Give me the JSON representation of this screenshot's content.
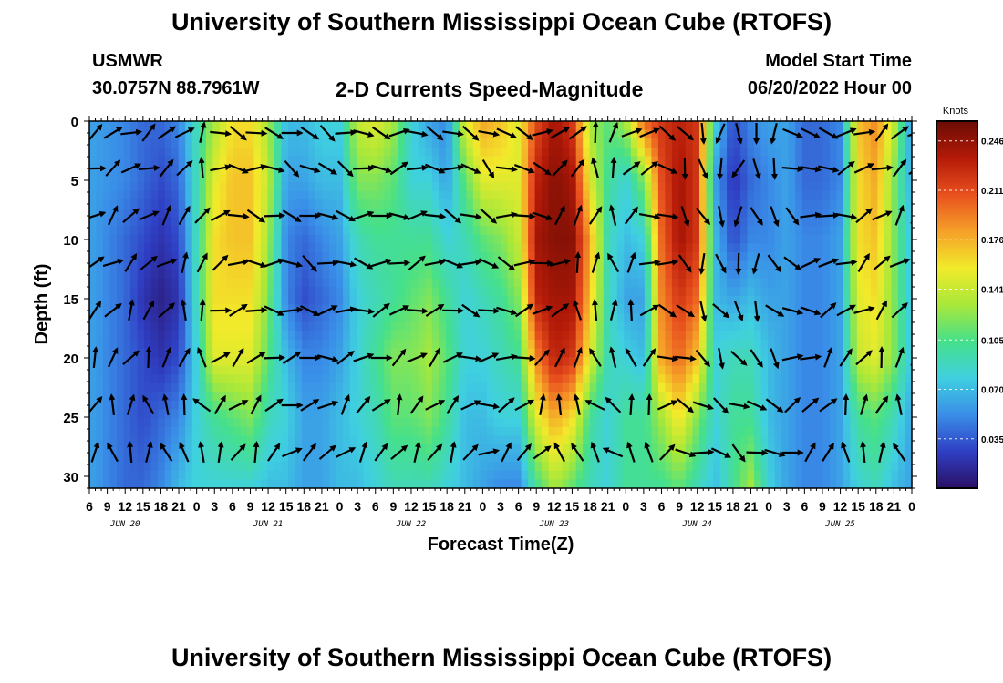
{
  "header": {
    "title": "University of Southern Mississippi Ocean Cube (RTOFS)",
    "station": "USMWR",
    "coords": "30.0757N  88.7961W",
    "subtitle": "2-D Currents Speed-Magnitude",
    "model_label": "Model Start Time",
    "model_time": "06/20/2022 Hour 00"
  },
  "footer": {
    "title": "University of Southern Mississippi Ocean Cube (RTOFS)"
  },
  "colors": {
    "scale": [
      "#2b1065",
      "#2f3fc4",
      "#3a8ee8",
      "#3fd0e0",
      "#46e08a",
      "#a8e83a",
      "#f2ea2a",
      "#f5a028",
      "#e8501e",
      "#b41a08",
      "#6a0c04"
    ],
    "vector": "#000000"
  },
  "chart_data": {
    "type": "heatmap",
    "xlabel": "Forecast Time(Z)",
    "ylabel": "Depth (ft)",
    "ylim": [
      0,
      31
    ],
    "y_ticks": [
      0,
      5,
      10,
      15,
      20,
      25,
      30
    ],
    "x_ticks": [
      "6",
      "9",
      "12",
      "15",
      "18",
      "21",
      "0",
      "3",
      "6",
      "9",
      "12",
      "15",
      "18",
      "21",
      "0",
      "3",
      "6",
      "9",
      "12",
      "15",
      "18",
      "21",
      "0",
      "3",
      "6",
      "9",
      "12",
      "15",
      "18",
      "21",
      "0",
      "3",
      "6",
      "9",
      "12",
      "15",
      "18",
      "21",
      "0",
      "3",
      "6",
      "9",
      "12",
      "15",
      "18",
      "21",
      "0"
    ],
    "x_tick_step_hours": 3,
    "x_start_hour": 6,
    "x_end_hour": 144,
    "day_labels": [
      {
        "label": "JUN 20",
        "hour": 12
      },
      {
        "label": "JUN 21",
        "hour": 36
      },
      {
        "label": "JUN 22",
        "hour": 60
      },
      {
        "label": "JUN 23",
        "hour": 84
      },
      {
        "label": "JUN 24",
        "hour": 108
      },
      {
        "label": "JUN 25",
        "hour": 132
      }
    ],
    "colorbar": {
      "title": "Knots",
      "min": 0.0,
      "max": 0.26,
      "ticks": [
        0.246,
        0.211,
        0.176,
        0.141,
        0.105,
        0.07,
        0.035
      ]
    },
    "speed_profile_by_time": [
      {
        "h": 6,
        "v": [
          0.06,
          0.06,
          0.06,
          0.06,
          0.06,
          0.06,
          0.06
        ]
      },
      {
        "h": 12,
        "v": [
          0.05,
          0.05,
          0.04,
          0.04,
          0.04,
          0.04,
          0.04
        ]
      },
      {
        "h": 15,
        "v": [
          0.04,
          0.04,
          0.03,
          0.02,
          0.03,
          0.03,
          0.04
        ]
      },
      {
        "h": 18,
        "v": [
          0.04,
          0.03,
          0.02,
          0.01,
          0.02,
          0.04,
          0.05
        ]
      },
      {
        "h": 21,
        "v": [
          0.05,
          0.04,
          0.03,
          0.02,
          0.03,
          0.05,
          0.07
        ]
      },
      {
        "h": 24,
        "v": [
          0.09,
          0.09,
          0.09,
          0.09,
          0.08,
          0.08,
          0.08
        ]
      },
      {
        "h": 27,
        "v": [
          0.13,
          0.15,
          0.16,
          0.16,
          0.15,
          0.1,
          0.08
        ]
      },
      {
        "h": 30,
        "v": [
          0.16,
          0.17,
          0.17,
          0.16,
          0.15,
          0.11,
          0.08
        ]
      },
      {
        "h": 33,
        "v": [
          0.16,
          0.17,
          0.17,
          0.16,
          0.15,
          0.12,
          0.08
        ]
      },
      {
        "h": 36,
        "v": [
          0.13,
          0.14,
          0.13,
          0.12,
          0.11,
          0.09,
          0.07
        ]
      },
      {
        "h": 39,
        "v": [
          0.07,
          0.06,
          0.05,
          0.05,
          0.07,
          0.08,
          0.07
        ]
      },
      {
        "h": 42,
        "v": [
          0.07,
          0.06,
          0.04,
          0.03,
          0.05,
          0.06,
          0.06
        ]
      },
      {
        "h": 45,
        "v": [
          0.08,
          0.07,
          0.05,
          0.04,
          0.05,
          0.06,
          0.06
        ]
      },
      {
        "h": 48,
        "v": [
          0.08,
          0.07,
          0.06,
          0.05,
          0.06,
          0.07,
          0.07
        ]
      },
      {
        "h": 51,
        "v": [
          0.14,
          0.12,
          0.09,
          0.08,
          0.08,
          0.08,
          0.07
        ]
      },
      {
        "h": 54,
        "v": [
          0.15,
          0.12,
          0.1,
          0.09,
          0.1,
          0.09,
          0.08
        ]
      },
      {
        "h": 57,
        "v": [
          0.13,
          0.11,
          0.1,
          0.1,
          0.12,
          0.11,
          0.09
        ]
      },
      {
        "h": 60,
        "v": [
          0.08,
          0.08,
          0.1,
          0.11,
          0.12,
          0.11,
          0.09
        ]
      },
      {
        "h": 63,
        "v": [
          0.06,
          0.08,
          0.1,
          0.12,
          0.13,
          0.12,
          0.09
        ]
      },
      {
        "h": 66,
        "v": [
          0.05,
          0.06,
          0.08,
          0.1,
          0.11,
          0.1,
          0.08
        ]
      },
      {
        "h": 69,
        "v": [
          0.15,
          0.11,
          0.09,
          0.08,
          0.08,
          0.07,
          0.07
        ]
      },
      {
        "h": 72,
        "v": [
          0.18,
          0.15,
          0.11,
          0.09,
          0.08,
          0.07,
          0.06
        ]
      },
      {
        "h": 75,
        "v": [
          0.17,
          0.15,
          0.12,
          0.1,
          0.09,
          0.08,
          0.05
        ]
      },
      {
        "h": 78,
        "v": [
          0.15,
          0.15,
          0.14,
          0.12,
          0.1,
          0.08,
          0.05
        ]
      },
      {
        "h": 81,
        "v": [
          0.21,
          0.23,
          0.24,
          0.23,
          0.19,
          0.15,
          0.1
        ]
      },
      {
        "h": 84,
        "v": [
          0.24,
          0.25,
          0.25,
          0.24,
          0.23,
          0.18,
          0.13
        ]
      },
      {
        "h": 87,
        "v": [
          0.22,
          0.24,
          0.25,
          0.24,
          0.22,
          0.16,
          0.11
        ]
      },
      {
        "h": 90,
        "v": [
          0.13,
          0.15,
          0.18,
          0.17,
          0.15,
          0.1,
          0.09
        ]
      },
      {
        "h": 93,
        "v": [
          0.11,
          0.1,
          0.09,
          0.09,
          0.09,
          0.08,
          0.08
        ]
      },
      {
        "h": 96,
        "v": [
          0.13,
          0.08,
          0.07,
          0.06,
          0.08,
          0.1,
          0.1
        ]
      },
      {
        "h": 99,
        "v": [
          0.2,
          0.12,
          0.08,
          0.06,
          0.07,
          0.1,
          0.1
        ]
      },
      {
        "h": 102,
        "v": [
          0.22,
          0.21,
          0.2,
          0.19,
          0.18,
          0.13,
          0.1
        ]
      },
      {
        "h": 105,
        "v": [
          0.23,
          0.24,
          0.24,
          0.22,
          0.2,
          0.16,
          0.11
        ]
      },
      {
        "h": 108,
        "v": [
          0.22,
          0.22,
          0.22,
          0.2,
          0.17,
          0.12,
          0.09
        ]
      },
      {
        "h": 111,
        "v": [
          0.08,
          0.06,
          0.07,
          0.07,
          0.08,
          0.08,
          0.07
        ]
      },
      {
        "h": 114,
        "v": [
          0.03,
          0.02,
          0.03,
          0.06,
          0.09,
          0.1,
          0.1
        ]
      },
      {
        "h": 117,
        "v": [
          0.05,
          0.04,
          0.05,
          0.07,
          0.09,
          0.1,
          0.13
        ]
      },
      {
        "h": 120,
        "v": [
          0.06,
          0.05,
          0.05,
          0.06,
          0.07,
          0.07,
          0.08
        ]
      },
      {
        "h": 123,
        "v": [
          0.06,
          0.06,
          0.06,
          0.06,
          0.06,
          0.06,
          0.06
        ]
      },
      {
        "h": 126,
        "v": [
          0.04,
          0.04,
          0.05,
          0.05,
          0.05,
          0.05,
          0.05
        ]
      },
      {
        "h": 129,
        "v": [
          0.04,
          0.04,
          0.05,
          0.05,
          0.05,
          0.05,
          0.05
        ]
      },
      {
        "h": 132,
        "v": [
          0.05,
          0.05,
          0.06,
          0.06,
          0.06,
          0.06,
          0.06
        ]
      },
      {
        "h": 135,
        "v": [
          0.17,
          0.16,
          0.16,
          0.15,
          0.14,
          0.1,
          0.08
        ]
      },
      {
        "h": 138,
        "v": [
          0.19,
          0.18,
          0.17,
          0.16,
          0.15,
          0.11,
          0.09
        ]
      },
      {
        "h": 141,
        "v": [
          0.14,
          0.12,
          0.12,
          0.12,
          0.12,
          0.09,
          0.07
        ]
      },
      {
        "h": 144,
        "v": [
          0.05,
          0.06,
          0.07,
          0.07,
          0.07,
          0.06,
          0.06
        ]
      }
    ],
    "profile_depths": [
      0,
      5,
      10,
      15,
      20,
      25,
      31
    ],
    "vector_rows_depth": [
      1,
      4,
      8,
      12,
      16,
      20,
      24,
      28
    ],
    "vector_cols_hour": [
      6,
      9,
      12,
      15,
      18,
      21,
      24,
      27,
      30,
      33,
      36,
      39,
      42,
      45,
      48,
      51,
      54,
      57,
      60,
      63,
      66,
      69,
      72,
      75,
      78,
      81,
      84,
      87,
      90,
      93,
      96,
      99,
      102,
      105,
      108,
      111,
      114,
      117,
      120,
      123,
      126,
      129,
      132,
      135,
      138,
      141,
      144
    ],
    "vector_dir_deg_by_col": [
      -30,
      -35,
      -35,
      -40,
      -45,
      -60,
      -70,
      -10,
      0,
      5,
      10,
      20,
      30,
      20,
      10,
      5,
      0,
      -10,
      -5,
      0,
      10,
      20,
      30,
      20,
      10,
      0,
      -40,
      -70,
      -80,
      -85,
      -60,
      -20,
      20,
      60,
      80,
      85,
      90,
      80,
      70,
      30,
      10,
      -10,
      -20,
      -30,
      -35,
      -40,
      -45
    ],
    "vector_dir_deg_by_row": [
      10,
      5,
      0,
      -5,
      -15,
      -30,
      -50,
      -60
    ]
  }
}
